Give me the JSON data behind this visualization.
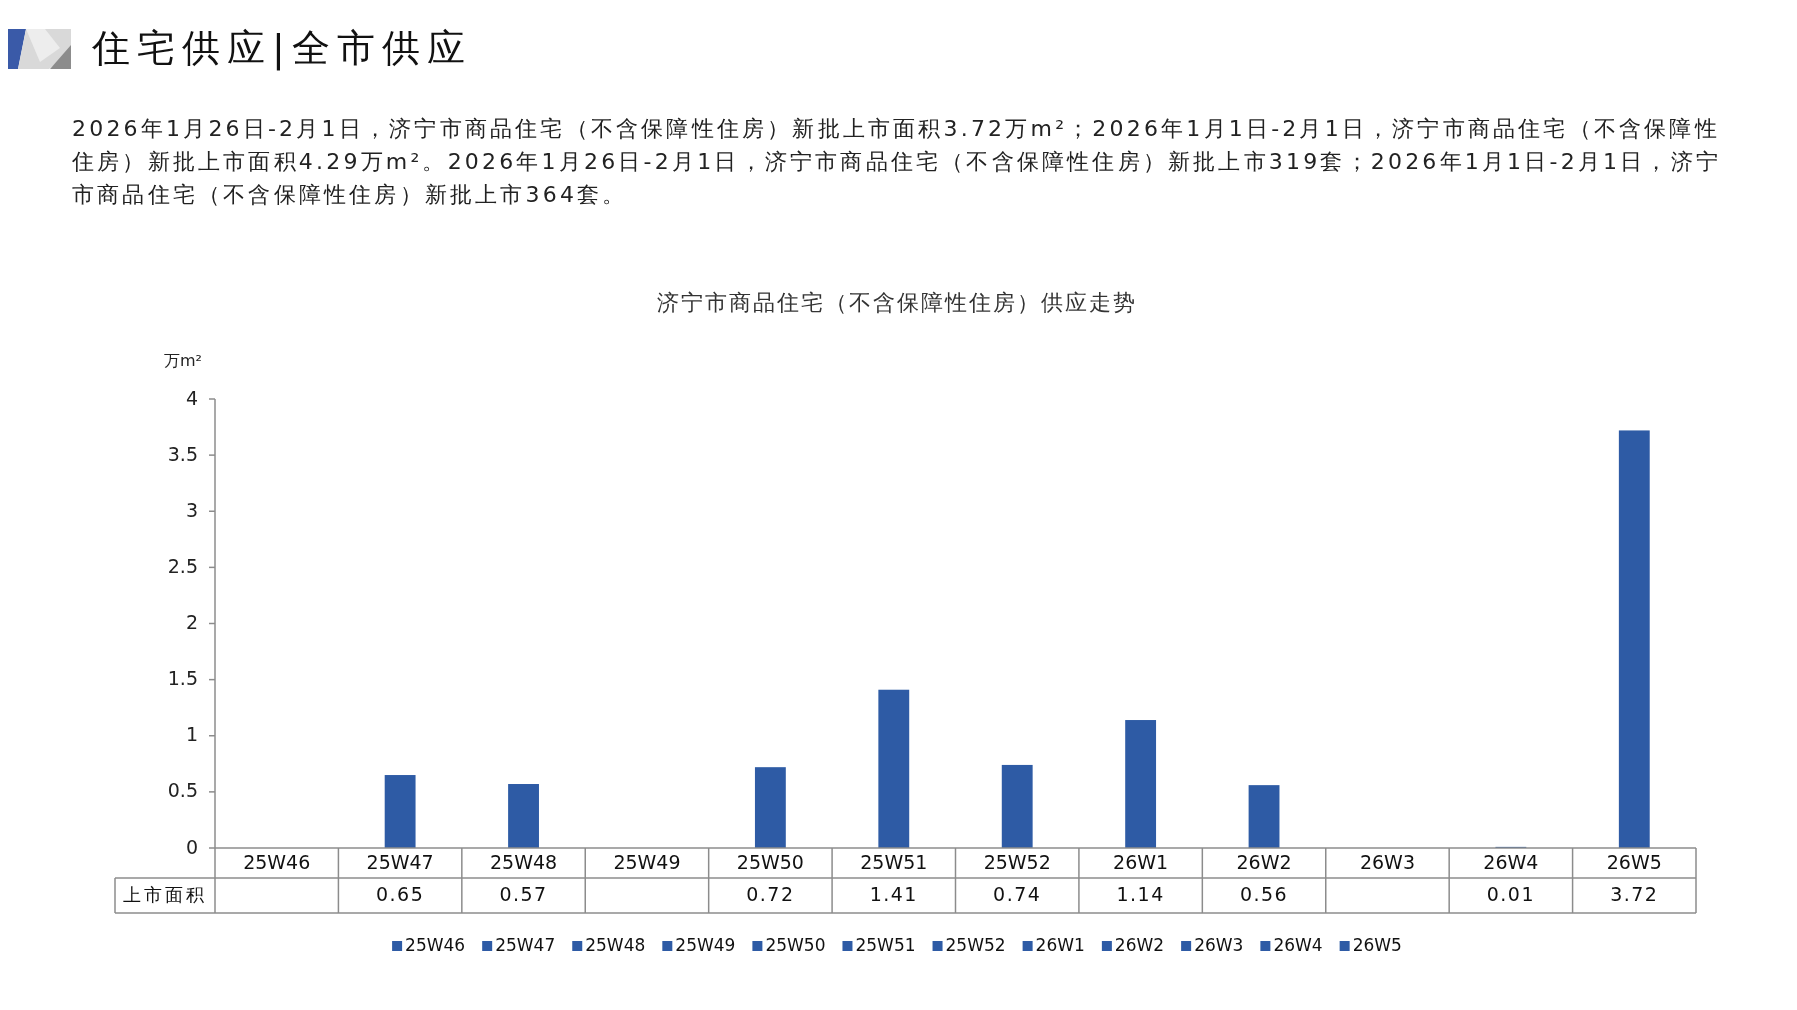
{
  "chart_data": {
    "type": "bar",
    "title": "住宅供应|全市供应",
    "subtitle": "济宁市商品住宅（不含保障性住房）供应走势",
    "annotations": [
      "2026年1月26日-2月1日，济宁市商品住宅（不含保障性住房）新批上市面积3.72万m²；2026年1月1日-2月1日，济宁市商品住宅（不含保障性住房）新批上市面积4.29万m²。2026年1月26日-2月1日，济宁市商品住宅（不含保障性住房）新批上市319套；2026年1月1日-2月1日，济宁市商品住宅（不含保障性住房）新批上市364套。"
    ],
    "ylabel": "万m²",
    "categories": [
      "25W46",
      "25W47",
      "25W48",
      "25W49",
      "25W50",
      "25W51",
      "25W52",
      "26W1",
      "26W2",
      "26W3",
      "26W4",
      "26W5"
    ],
    "series": [
      {
        "name": "上市面积",
        "color": "#2e5ba5",
        "values": [
          null,
          0.65,
          0.57,
          null,
          0.72,
          1.41,
          0.74,
          1.14,
          0.56,
          null,
          0.01,
          3.72
        ]
      }
    ],
    "ylim": [
      0,
      4
    ],
    "yticks": [
      0,
      0.5,
      1,
      1.5,
      2,
      2.5,
      3,
      3.5,
      4
    ],
    "legend": "bottom",
    "data_labels": true
  }
}
